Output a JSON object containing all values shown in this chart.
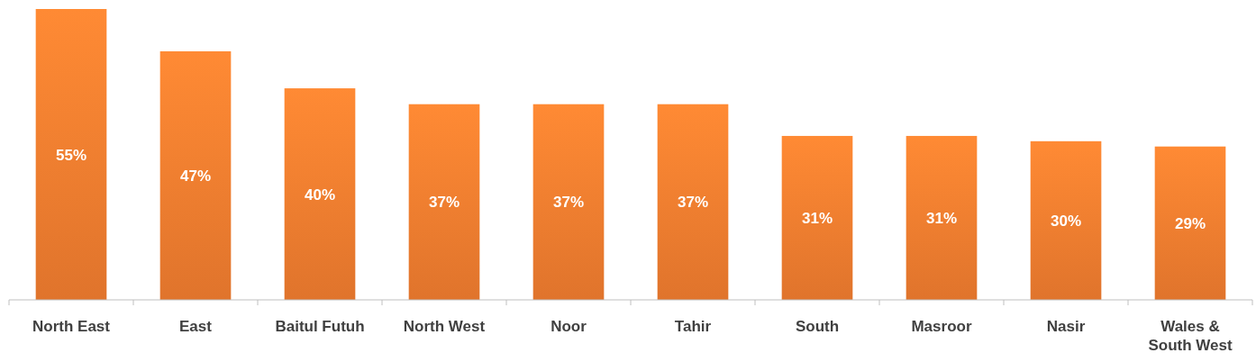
{
  "chart_data": {
    "type": "bar",
    "categories": [
      "North East",
      "East",
      "Baitul Futuh",
      "North West",
      "Noor",
      "Tahir",
      "South",
      "Masroor",
      "Nasir",
      "Wales & South West"
    ],
    "values": [
      55,
      47,
      40,
      37,
      37,
      37,
      31,
      31,
      30,
      29
    ],
    "value_labels": [
      "55%",
      "47%",
      "40%",
      "37%",
      "37%",
      "37%",
      "31%",
      "31%",
      "30%",
      "29%"
    ],
    "color": "#ec7a2e"
  }
}
